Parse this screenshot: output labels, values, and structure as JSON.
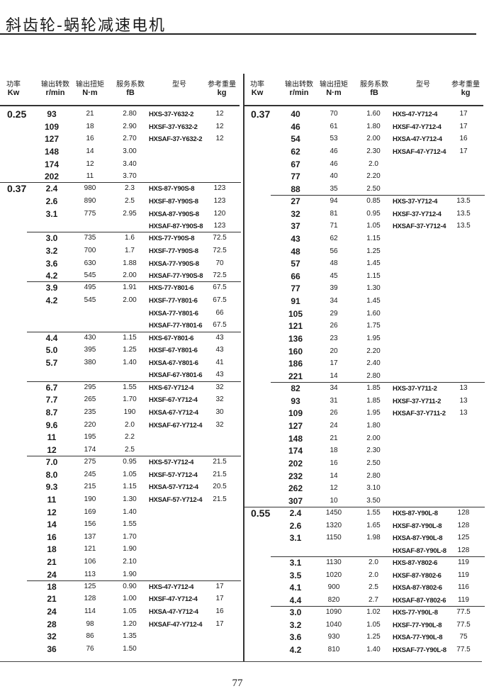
{
  "title": "斜齿轮-蜗轮减速电机",
  "page_number": "77",
  "headers": [
    {
      "cn": "功率",
      "unit": "Kw"
    },
    {
      "cn": "输出转数",
      "unit": "r/min"
    },
    {
      "cn": "输出扭矩",
      "unit": "N·m"
    },
    {
      "cn": "服务系数",
      "unit": "fB"
    },
    {
      "cn": "型号",
      "unit": ""
    },
    {
      "cn": "参考重量",
      "unit": "kg"
    }
  ],
  "tables": [
    {
      "groups": [
        {
          "kw": "0.25",
          "rows": [
            [
              "93",
              "21",
              "2.80",
              "HXS-37-Y632-2",
              "12"
            ],
            [
              "109",
              "18",
              "2.90",
              "HXSF-37-Y632-2",
              "12"
            ],
            [
              "127",
              "16",
              "2.70",
              "HXSAF-37-Y632-2",
              "12"
            ],
            [
              "148",
              "14",
              "3.00",
              "",
              ""
            ],
            [
              "174",
              "12",
              "3.40",
              "",
              ""
            ],
            [
              "202",
              "11",
              "3.70",
              "",
              ""
            ]
          ]
        },
        {
          "kw": "0.37",
          "rows": [
            [
              "2.4",
              "980",
              "2.3",
              "HXS-87-Y90S-8",
              "123"
            ],
            [
              "2.6",
              "890",
              "2.5",
              "HXSF-87-Y90S-8",
              "123"
            ],
            [
              "3.1",
              "775",
              "2.95",
              "HXSA-87-Y90S-8",
              "120"
            ],
            [
              "",
              "",
              "",
              "HXSAF-87-Y90S-8",
              "123"
            ]
          ]
        },
        {
          "kw": "",
          "rows": [
            [
              "3.0",
              "735",
              "1.6",
              "HXS-77-Y90S-8",
              "72.5"
            ],
            [
              "3.2",
              "700",
              "1.7",
              "HXSF-77-Y90S-8",
              "72.5"
            ],
            [
              "3.6",
              "630",
              "1.88",
              "HXSA-77-Y90S-8",
              "70"
            ],
            [
              "4.2",
              "545",
              "2.00",
              "HXSAF-77-Y90S-8",
              "72.5"
            ]
          ]
        },
        {
          "kw": "",
          "rows": [
            [
              "3.9",
              "495",
              "1.91",
              "HXS-77-Y801-6",
              "67.5"
            ],
            [
              "4.2",
              "545",
              "2.00",
              "HXSF-77-Y801-6",
              "67.5"
            ],
            [
              "",
              "",
              "",
              "HXSA-77-Y801-6",
              "66"
            ],
            [
              "",
              "",
              "",
              "HXSAF-77-Y801-6",
              "67.5"
            ]
          ]
        },
        {
          "kw": "",
          "rows": [
            [
              "4.4",
              "430",
              "1.15",
              "HXS-67-Y801-6",
              "43"
            ],
            [
              "5.0",
              "395",
              "1.25",
              "HXSF-67-Y801-6",
              "43"
            ],
            [
              "5.7",
              "380",
              "1.40",
              "HXSA-67-Y801-6",
              "41"
            ],
            [
              "",
              "",
              "",
              "HXSAF-67-Y801-6",
              "43"
            ]
          ]
        },
        {
          "kw": "",
          "rows": [
            [
              "6.7",
              "295",
              "1.55",
              "HXS-67-Y712-4",
              "32"
            ],
            [
              "7.7",
              "265",
              "1.70",
              "HXSF-67-Y712-4",
              "32"
            ],
            [
              "8.7",
              "235",
              "190",
              "HXSA-67-Y712-4",
              "30"
            ],
            [
              "9.6",
              "220",
              "2.0",
              "HXSAF-67-Y712-4",
              "32"
            ],
            [
              "11",
              "195",
              "2.2",
              "",
              ""
            ],
            [
              "12",
              "174",
              "2.5",
              "",
              ""
            ]
          ]
        },
        {
          "kw": "",
          "rows": [
            [
              "7.0",
              "275",
              "0.95",
              "HXS-57-Y712-4",
              "21.5"
            ],
            [
              "8.0",
              "245",
              "1.05",
              "HXSF-57-Y712-4",
              "21.5"
            ],
            [
              "9.3",
              "215",
              "1.15",
              "HXSA-57-Y712-4",
              "20.5"
            ],
            [
              "11",
              "190",
              "1.30",
              "HXSAF-57-Y712-4",
              "21.5"
            ],
            [
              "12",
              "169",
              "1.40",
              "",
              ""
            ],
            [
              "14",
              "156",
              "1.55",
              "",
              ""
            ],
            [
              "16",
              "137",
              "1.70",
              "",
              ""
            ],
            [
              "18",
              "121",
              "1.90",
              "",
              ""
            ],
            [
              "21",
              "106",
              "2.10",
              "",
              ""
            ],
            [
              "24",
              "113",
              "1.90",
              "",
              ""
            ]
          ]
        },
        {
          "kw": "",
          "rows": [
            [
              "18",
              "125",
              "0.90",
              "HXS-47-Y712-4",
              "17"
            ],
            [
              "21",
              "128",
              "1.00",
              "HXSF-47-Y712-4",
              "17"
            ],
            [
              "24",
              "114",
              "1.05",
              "HXSA-47-Y712-4",
              "16"
            ],
            [
              "28",
              "98",
              "1.20",
              "HXSAF-47-Y712-4",
              "17"
            ],
            [
              "32",
              "86",
              "1.35",
              "",
              ""
            ],
            [
              "36",
              "76",
              "1.50",
              "",
              ""
            ]
          ]
        }
      ]
    },
    {
      "groups": [
        {
          "kw": "0.37",
          "rows": [
            [
              "40",
              "70",
              "1.60",
              "HXS-47-Y712-4",
              "17"
            ],
            [
              "46",
              "61",
              "1.80",
              "HXSF-47-Y712-4",
              "17"
            ],
            [
              "54",
              "53",
              "2.00",
              "HXSA-47-Y712-4",
              "16"
            ],
            [
              "62",
              "46",
              "2.30",
              "HXSAF-47-Y712-4",
              "17"
            ],
            [
              "67",
              "46",
              "2.0",
              "",
              ""
            ],
            [
              "77",
              "40",
              "2.20",
              "",
              ""
            ],
            [
              "88",
              "35",
              "2.50",
              "",
              ""
            ]
          ]
        },
        {
          "kw": "",
          "rows": [
            [
              "27",
              "94",
              "0.85",
              "HXS-37-Y712-4",
              "13.5"
            ],
            [
              "32",
              "81",
              "0.95",
              "HXSF-37-Y712-4",
              "13.5"
            ],
            [
              "37",
              "71",
              "1.05",
              "HXSAF-37-Y712-4",
              "13.5"
            ],
            [
              "43",
              "62",
              "1.15",
              "",
              ""
            ],
            [
              "48",
              "56",
              "1.25",
              "",
              ""
            ],
            [
              "57",
              "48",
              "1.45",
              "",
              ""
            ],
            [
              "66",
              "45",
              "1.15",
              "",
              ""
            ],
            [
              "77",
              "39",
              "1.30",
              "",
              ""
            ],
            [
              "91",
              "34",
              "1.45",
              "",
              ""
            ],
            [
              "105",
              "29",
              "1.60",
              "",
              ""
            ],
            [
              "121",
              "26",
              "1.75",
              "",
              ""
            ],
            [
              "136",
              "23",
              "1.95",
              "",
              ""
            ],
            [
              "160",
              "20",
              "2.20",
              "",
              ""
            ],
            [
              "186",
              "17",
              "2.40",
              "",
              ""
            ],
            [
              "221",
              "14",
              "2.80",
              "",
              ""
            ]
          ]
        },
        {
          "kw": "",
          "rows": [
            [
              "82",
              "34",
              "1.85",
              "HXS-37-Y711-2",
              "13"
            ],
            [
              "93",
              "31",
              "1.85",
              "HXSF-37-Y711-2",
              "13"
            ],
            [
              "109",
              "26",
              "1.95",
              "HXSAF-37-Y711-2",
              "13"
            ],
            [
              "127",
              "24",
              "1.80",
              "",
              ""
            ],
            [
              "148",
              "21",
              "2.00",
              "",
              ""
            ],
            [
              "174",
              "18",
              "2.30",
              "",
              ""
            ],
            [
              "202",
              "16",
              "2.50",
              "",
              ""
            ],
            [
              "232",
              "14",
              "2.80",
              "",
              ""
            ],
            [
              "262",
              "12",
              "3.10",
              "",
              ""
            ],
            [
              "307",
              "10",
              "3.50",
              "",
              ""
            ]
          ]
        },
        {
          "kw": "0.55",
          "rows": [
            [
              "2.4",
              "1450",
              "1.55",
              "HXS-87-Y90L-8",
              "128"
            ],
            [
              "2.6",
              "1320",
              "1.65",
              "HXSF-87-Y90L-8",
              "128"
            ],
            [
              "3.1",
              "1150",
              "1.98",
              "HXSA-87-Y90L-8",
              "125"
            ],
            [
              "",
              "",
              "",
              "HXSAF-87-Y90L-8",
              "128"
            ]
          ]
        },
        {
          "kw": "",
          "rows": [
            [
              "3.1",
              "1130",
              "2.0",
              "HXS-87-Y802-6",
              "119"
            ],
            [
              "3.5",
              "1020",
              "2.0",
              "HXSF-87-Y802-6",
              "119"
            ],
            [
              "4.1",
              "900",
              "2.5",
              "HXSA-87-Y802-6",
              "116"
            ],
            [
              "4.4",
              "820",
              "2.7",
              "HXSAF-87-Y802-6",
              "119"
            ]
          ]
        },
        {
          "kw": "",
          "rows": [
            [
              "3.0",
              "1090",
              "1.02",
              "HXS-77-Y90L-8",
              "77.5"
            ],
            [
              "3.2",
              "1040",
              "1.05",
              "HXSF-77-Y90L-8",
              "77.5"
            ],
            [
              "3.6",
              "930",
              "1.25",
              "HXSA-77-Y90L-8",
              "75"
            ],
            [
              "4.2",
              "810",
              "1.40",
              "HXSAF-77-Y90L-8",
              "77.5"
            ]
          ]
        }
      ]
    }
  ]
}
